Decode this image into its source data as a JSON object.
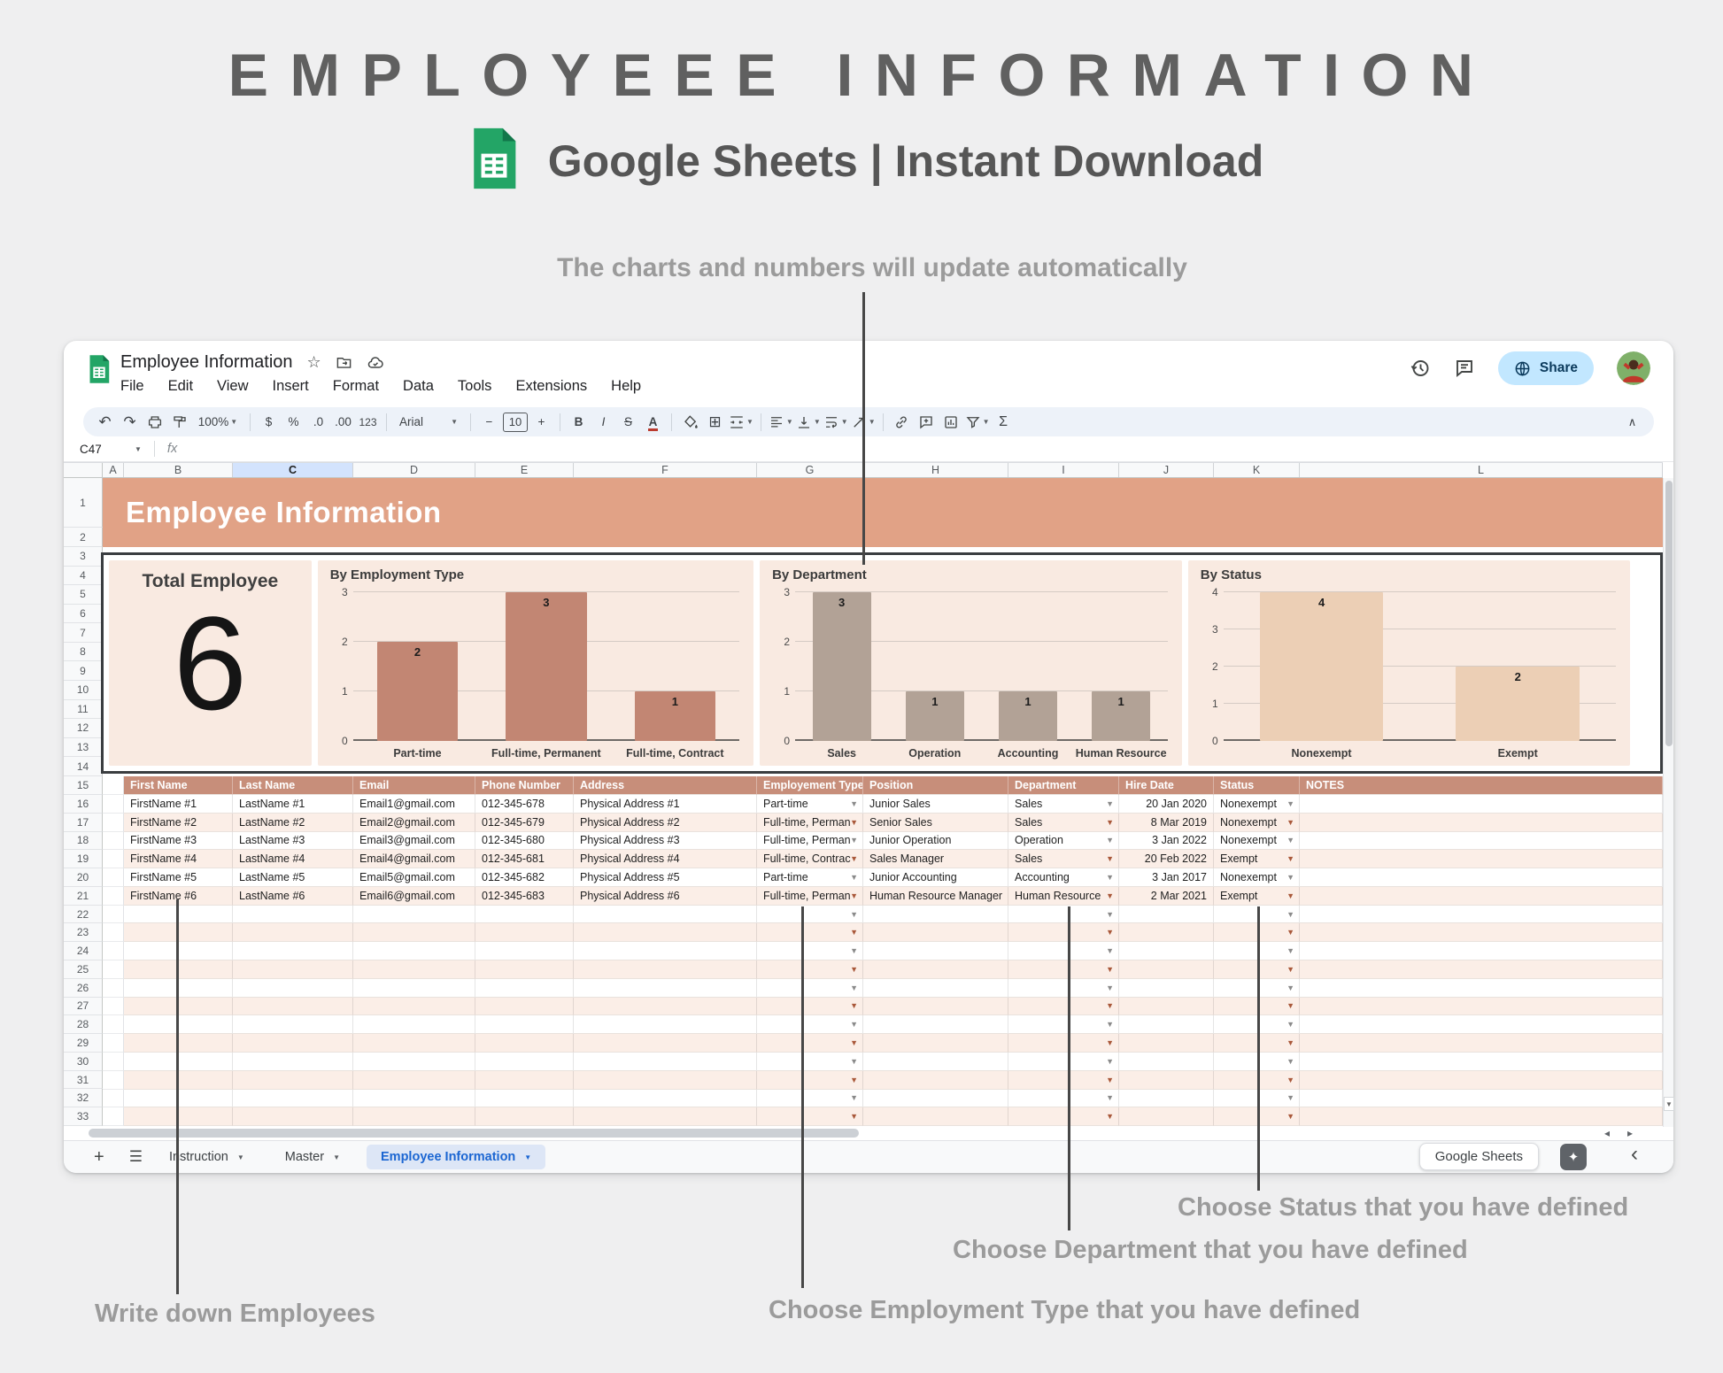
{
  "header": {
    "title": "EMPLOYEEE INFORMATION",
    "subtitle": "Google Sheets | Instant Download"
  },
  "annotations": {
    "charts_note": "The charts and numbers will update automatically",
    "write_employees": "Write down Employees",
    "choose_employment": "Choose Employment Type that you have defined",
    "choose_department": "Choose Department that you have defined",
    "choose_status": "Choose Status that you have defined"
  },
  "app": {
    "doc_title": "Employee Information",
    "menu_items": [
      "File",
      "Edit",
      "View",
      "Insert",
      "Format",
      "Data",
      "Tools",
      "Extensions",
      "Help"
    ],
    "share_label": "Share",
    "toolbar": {
      "zoom": "100%",
      "currency": "$",
      "percent": "%",
      "decrease_decimal": ".0",
      "increase_decimal": ".00",
      "more_formats": "123",
      "font_family": "Arial",
      "font_size": "10",
      "bold": "B",
      "italic": "I",
      "strikethrough": "S",
      "text_color": "A",
      "functions": "Σ"
    },
    "name_box": "C47",
    "formula_label": "fx",
    "tabs": [
      {
        "label": "Instruction",
        "active": false
      },
      {
        "label": "Master",
        "active": false
      },
      {
        "label": "Employee Information",
        "active": true
      }
    ],
    "badge": "Google Sheets"
  },
  "sheet": {
    "column_letters": [
      "A",
      "B",
      "C",
      "D",
      "E",
      "F",
      "G",
      "H",
      "I",
      "J",
      "K",
      "L"
    ],
    "selected_column": "C",
    "rows_visible": 33,
    "banner": "Employee Information",
    "table": {
      "headers": [
        "First Name",
        "Last Name",
        "Email",
        "Phone Number",
        "Address",
        "Employement Type",
        "Position",
        "Department",
        "Hire Date",
        "Status",
        "NOTES"
      ],
      "dropdown_columns": [
        5,
        7,
        9
      ],
      "right_aligned_columns": [
        8
      ],
      "rows": [
        [
          "FirstName #1",
          "LastName #1",
          "Email1@gmail.com",
          "012-345-678",
          "Physical Address #1",
          "Part-time",
          "Junior Sales",
          "Sales",
          "20 Jan 2020",
          "Nonexempt",
          ""
        ],
        [
          "FirstName #2",
          "LastName #2",
          "Email2@gmail.com",
          "012-345-679",
          "Physical Address #2",
          "Full-time, Perman",
          "Senior Sales",
          "Sales",
          "8 Mar 2019",
          "Nonexempt",
          ""
        ],
        [
          "FirstName #3",
          "LastName #3",
          "Email3@gmail.com",
          "012-345-680",
          "Physical Address #3",
          "Full-time, Perman",
          "Junior Operation",
          "Operation",
          "3 Jan 2022",
          "Nonexempt",
          ""
        ],
        [
          "FirstName #4",
          "LastName #4",
          "Email4@gmail.com",
          "012-345-681",
          "Physical Address #4",
          "Full-time, Contrac",
          "Sales Manager",
          "Sales",
          "20 Feb 2022",
          "Exempt",
          ""
        ],
        [
          "FirstName #5",
          "LastName #5",
          "Email5@gmail.com",
          "012-345-682",
          "Physical Address #5",
          "Part-time",
          "Junior Accounting",
          "Accounting",
          "3 Jan 2017",
          "Nonexempt",
          ""
        ],
        [
          "FirstName #6",
          "LastName #6",
          "Email6@gmail.com",
          "012-345-683",
          "Physical Address #6",
          "Full-time, Perman",
          "Human Resource Manager",
          "Human Resource",
          "2 Mar 2021",
          "Exempt",
          ""
        ]
      ],
      "empty_row_count": 12
    }
  },
  "chart_data": [
    {
      "type": "number",
      "title": "Total Employee",
      "value": 6
    },
    {
      "type": "bar",
      "title": "By Employment Type",
      "categories": [
        "Part-time",
        "Full-time, Permanent",
        "Full-time, Contract"
      ],
      "values": [
        2,
        3,
        1
      ],
      "ylim": [
        0,
        3
      ],
      "yticks": [
        0,
        1,
        2,
        3
      ],
      "bar_color": "#c28673",
      "grid": true,
      "legend": "none"
    },
    {
      "type": "bar",
      "title": "By Department",
      "categories": [
        "Sales",
        "Operation",
        "Accounting",
        "Human Resource"
      ],
      "values": [
        3,
        1,
        1,
        1
      ],
      "ylim": [
        0,
        3
      ],
      "yticks": [
        0,
        1,
        2,
        3
      ],
      "bar_color": "#b2a296",
      "grid": true,
      "legend": "none"
    },
    {
      "type": "bar",
      "title": "By Status",
      "categories": [
        "Nonexempt",
        "Exempt"
      ],
      "values": [
        4,
        2
      ],
      "ylim": [
        0,
        4
      ],
      "yticks": [
        0,
        1,
        2,
        3,
        4
      ],
      "bar_color": "#eccfb5",
      "grid": true,
      "legend": "none"
    }
  ],
  "colors": {
    "banner_bg": "#e1a286",
    "table_header_bg": "#c78e7a",
    "row_alt_bg": "#fbeee7",
    "card_bg": "#f9eae1",
    "bar_employment": "#c28673",
    "bar_department": "#b2a296",
    "bar_status": "#eccfb5",
    "chart_border": "#3a3d40",
    "accent_blue": "#1b66d2",
    "share_bg": "#c2e7ff",
    "annotation_gray": "#9b9b9b"
  }
}
